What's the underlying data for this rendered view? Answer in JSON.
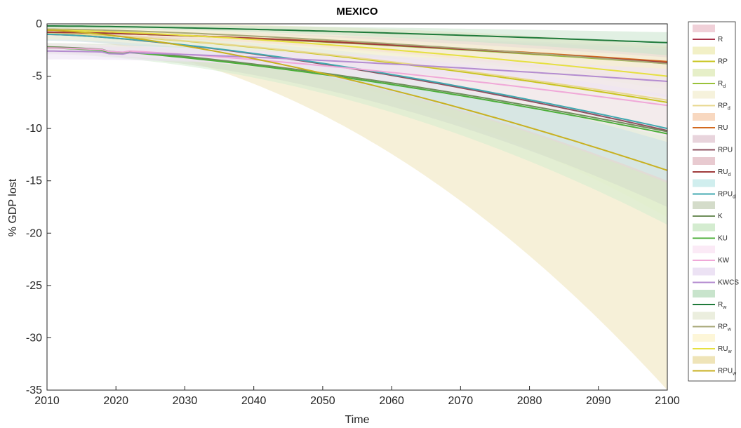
{
  "chart_data": {
    "type": "line",
    "title": "MEXICO",
    "xlabel": "Time",
    "ylabel": "% GDP lost",
    "xlim": [
      2010,
      2100
    ],
    "ylim": [
      -35,
      0
    ],
    "xticks": [
      "2010",
      "2020",
      "2030",
      "2040",
      "2050",
      "2060",
      "2070",
      "2080",
      "2090",
      "2100"
    ],
    "yticks": [
      "0",
      "-5",
      "-10",
      "-15",
      "-20",
      "-25",
      "-30",
      "-35"
    ],
    "grid": false,
    "legend_position": "right",
    "series": [
      {
        "label": "R",
        "sub": "",
        "color": "#a8324a",
        "fill": "#f0d0d8",
        "start": -0.8,
        "end": -3.7,
        "lo": -2.2,
        "hi": -1.3,
        "spread0": 0.3
      },
      {
        "label": "RP",
        "sub": "",
        "color": "#c8c41e",
        "fill": "#f2f0c6",
        "start": -0.9,
        "end": -7.5,
        "lo": -11.0,
        "hi": -4.5,
        "spread0": 0.6
      },
      {
        "label": "R",
        "sub": "d",
        "color": "#9ac23a",
        "fill": "#e6efc8",
        "start": -0.8,
        "end": -3.8,
        "lo": -2.5,
        "hi": -1.5,
        "spread0": 0.3
      },
      {
        "label": "RP",
        "sub": "d",
        "color": "#e8d890",
        "fill": "#f6f2dc",
        "start": -0.9,
        "end": -7.3,
        "lo": -4.0,
        "hi": -3.0,
        "spread0": 0.6
      },
      {
        "label": "RU",
        "sub": "",
        "color": "#d2691e",
        "fill": "#f8d8c0",
        "start": -0.8,
        "end": -3.6,
        "lo": -2.0,
        "hi": -1.4,
        "spread0": 0.3
      },
      {
        "label": "RPU",
        "sub": "",
        "color": "#8e5060",
        "fill": "#e8d4dc",
        "start": -1.0,
        "end": -10.2,
        "lo": -5.0,
        "hi": -4.5,
        "spread0": 0.6
      },
      {
        "label": "RU",
        "sub": "d",
        "color": "#a03c3c",
        "fill": "#e8cad0",
        "start": -0.8,
        "end": -3.7,
        "lo": -2.0,
        "hi": -1.3,
        "spread0": 0.3
      },
      {
        "label": "RPU",
        "sub": "d",
        "color": "#40a8b0",
        "fill": "#d0eeee",
        "start": -1.0,
        "end": -10.0,
        "lo": -5.0,
        "hi": -4.5,
        "spread0": 0.6
      },
      {
        "label": "K",
        "sub": "",
        "color": "#6e8e5a",
        "fill": "#d4dcca",
        "start": -2.2,
        "end": -10.3,
        "lo": -7.2,
        "hi": -4.7,
        "spread0": 0.6
      },
      {
        "label": "KU",
        "sub": "",
        "color": "#4caf3a",
        "fill": "#d4ecd0",
        "start": -2.3,
        "end": -10.5,
        "lo": -8.7,
        "hi": -3.5,
        "spread0": 0.6
      },
      {
        "label": "KW",
        "sub": "",
        "color": "#f0a8d8",
        "fill": "#fbeaf6",
        "start": -2.3,
        "end": -7.8,
        "lo": -3.0,
        "hi": -2.5,
        "spread0": 0.6
      },
      {
        "label": "KWCS",
        "sub": "",
        "color": "#b48cd0",
        "fill": "#ece2f4",
        "start": -2.6,
        "end": -5.5,
        "lo": -1.5,
        "hi": -1.2,
        "spread0": 0.8
      },
      {
        "label": "R",
        "sub": "w",
        "color": "#1f7a3a",
        "fill": "#c8e4cc",
        "start": -0.2,
        "end": -1.8,
        "lo": -1.2,
        "hi": -1.0,
        "spread0": 0.2
      },
      {
        "label": "RP",
        "sub": "w",
        "color": "#a8a878",
        "fill": "#ebeede",
        "start": -0.5,
        "end": -3.8,
        "lo": -1.8,
        "hi": -1.5,
        "spread0": 0.3
      },
      {
        "label": "RU",
        "sub": "w",
        "color": "#e6e040",
        "fill": "#fdf6d8",
        "start": -0.6,
        "end": -5.0,
        "lo": -1.8,
        "hi": -1.8,
        "spread0": 0.3
      },
      {
        "label": "RPU",
        "sub": "w",
        "color": "#c8b020",
        "fill": "#efe4b8",
        "start": -0.6,
        "end": -14.0,
        "lo": -21.0,
        "hi": -12.0,
        "spread0": 0.8
      }
    ]
  }
}
